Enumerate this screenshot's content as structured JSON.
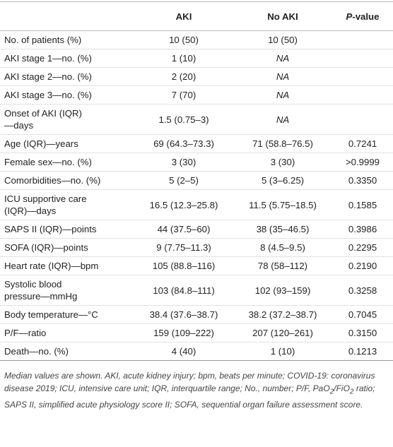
{
  "table": {
    "header": [
      "AKI",
      "No AKI",
      [
        "P",
        "-value"
      ]
    ],
    "rows": [
      [
        "No. of patients (%)",
        "10 (50)",
        "10 (50)",
        null
      ],
      [
        "AKI stage 1—no. (%)",
        "1 (10)",
        "NA",
        null
      ],
      [
        "AKI stage 2—no. (%)",
        "2 (20)",
        "NA",
        null
      ],
      [
        "AKI stage 3—no. (%)",
        "7 (70)",
        "NA",
        null
      ],
      [
        "Onset of AKI (IQR)—days",
        "1.5 (0.75–3)",
        "NA",
        null
      ],
      [
        "Age (IQR)—years",
        "69 (64.3–73.3)",
        "71 (58.8–76.5)",
        "0.7241"
      ],
      [
        "Female sex—no. (%)",
        "3 (30)",
        "3 (30)",
        ">0.9999"
      ],
      [
        "Comorbidities—no. (%)",
        "5 (2–5)",
        "5 (3–6.25)",
        "0.3350"
      ],
      [
        "ICU supportive care (IQR)—days",
        "16.5 (12.3–25.8)",
        "11.5 (5.75–18.5)",
        "0.1585"
      ],
      [
        "SAPS II (IQR)—points",
        "44 (37.5–60)",
        "38 (35–46.5)",
        "0.3986"
      ],
      [
        "SOFA (IQR)—points",
        "9 (7.75–11.3)",
        "8 (4.5–9.5)",
        "0.2295"
      ],
      [
        "Heart rate (IQR)—bpm",
        "105 (88.8–116)",
        "78 (58–112)",
        "0.2190"
      ],
      [
        "Systolic blood pressure—mmHg",
        "103 (84.8–111)",
        "102 (93–159)",
        "0.3258"
      ],
      [
        "Body temperature—°C",
        "38.4 (37.6–38.7)",
        "38.2 (37.2–38.7)",
        "0.7045"
      ],
      [
        "P/F—ratio",
        "159 (109–222)",
        "207 (120–261)",
        "0.3150"
      ],
      [
        "Death—no. (%)",
        "4 (40)",
        "1 (10)",
        "0.1213"
      ]
    ]
  },
  "footnote": [
    "Median values are shown. AKI, acute kidney injury; bpm, beats per minute; COVID-19: coronavirus disease 2019; ICU, intensive care unit; IQR, interquartile range; No., number; P/F, PaO",
    "2",
    "/FiO",
    "2",
    " ratio; SAPS II, simplified acute physiology score II; SOFA, sequential organ failure assessment score."
  ]
}
